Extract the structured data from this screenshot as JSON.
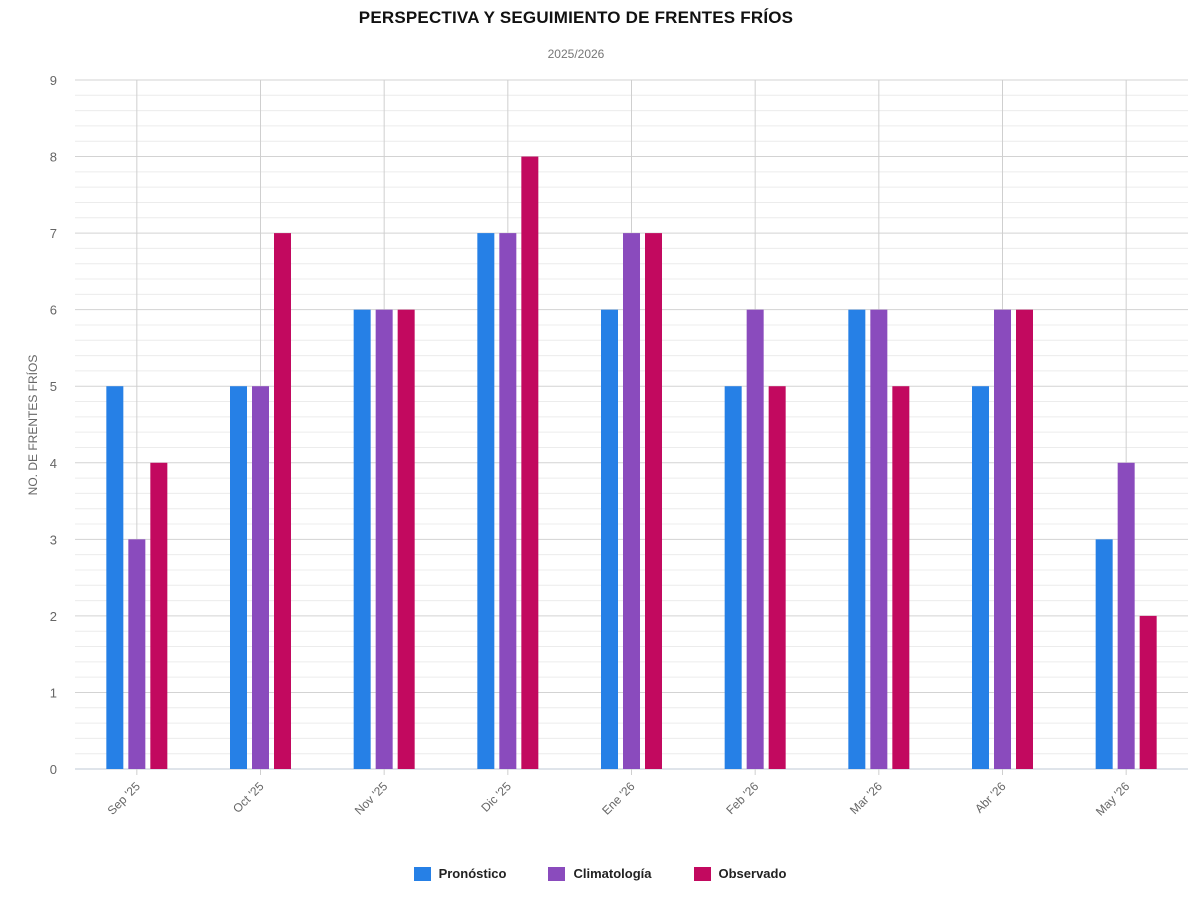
{
  "chart_data": {
    "type": "bar",
    "title": "PERSPECTIVA Y SEGUIMIENTO DE FRENTES FRÍOS",
    "subtitle": "2025/2026",
    "ylabel": "NO. DE FRENTES FRÍOS",
    "xlabel": "",
    "ylim": [
      0,
      9
    ],
    "yticks": [
      0,
      1,
      2,
      3,
      4,
      5,
      6,
      7,
      8,
      9
    ],
    "grid": true,
    "legend_position": "bottom-center",
    "categories": [
      "Sep '25",
      "Oct '25",
      "Nov '25",
      "Dic '25",
      "Ene '26",
      "Feb '26",
      "Mar '26",
      "Abr '26",
      "May '26"
    ],
    "series": [
      {
        "name": "Pronóstico",
        "color": "#2680e6",
        "values": [
          5,
          5,
          6,
          7,
          6,
          5,
          6,
          5,
          3
        ]
      },
      {
        "name": "Climatología",
        "color": "#8a4bbd",
        "values": [
          3,
          5,
          6,
          7,
          7,
          6,
          6,
          6,
          4
        ]
      },
      {
        "name": "Observado",
        "color": "#c2095f",
        "values": [
          4,
          7,
          6,
          8,
          7,
          5,
          5,
          6,
          2
        ]
      }
    ]
  }
}
